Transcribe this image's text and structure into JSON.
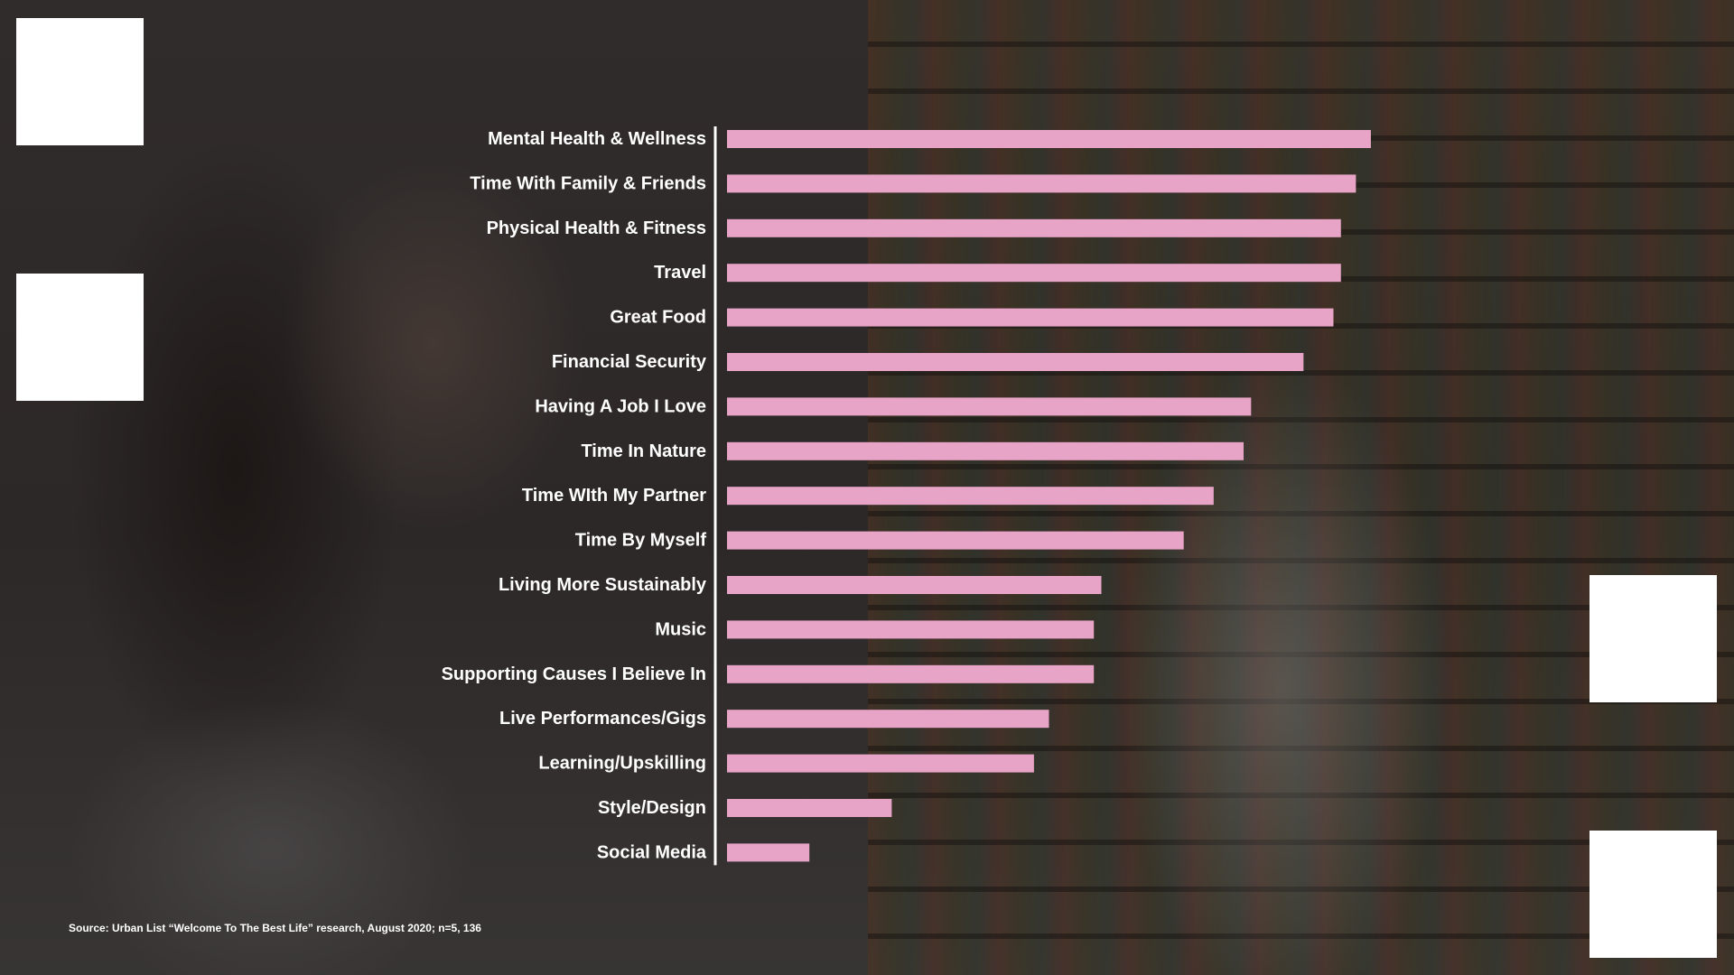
{
  "source_note": "Source: Urban List “Welcome To The Best Life” research, August 2020; n=5, 136",
  "colors": {
    "bar": "#e8a4c6",
    "axis": "#ffffff",
    "label": "#ffffff"
  },
  "chart_data": {
    "type": "bar",
    "orientation": "horizontal",
    "title": "",
    "xlabel": "",
    "ylabel": "",
    "xlim": [
      0,
      100
    ],
    "grid": false,
    "categories": [
      "Mental Health & Wellness",
      "Time With Family & Friends",
      "Physical Health & Fitness",
      "Travel",
      "Great Food",
      "Financial Security",
      "Having A Job I Love",
      "Time In Nature",
      "Time WIth My Partner",
      "Time By Myself",
      "Living More Sustainably",
      "Music",
      "Supporting Causes I Believe In",
      "Live Performances/Gigs",
      "Learning/Upskilling",
      "Style/Design",
      "Social Media"
    ],
    "values": [
      86,
      84,
      82,
      82,
      81,
      77,
      70,
      69,
      65,
      61,
      50,
      49,
      49,
      43,
      41,
      22,
      11
    ]
  }
}
